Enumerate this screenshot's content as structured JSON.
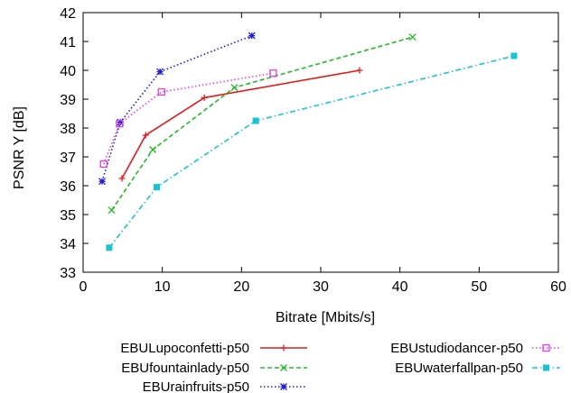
{
  "chart_data": {
    "type": "line",
    "title": "",
    "xlabel": "Bitrate [Mbits/s]",
    "ylabel": "PSNR Y [dB]",
    "xlim": [
      0,
      60
    ],
    "ylim": [
      33,
      42
    ],
    "xticks": [
      0,
      10,
      20,
      30,
      40,
      50,
      60
    ],
    "yticks": [
      33,
      34,
      35,
      36,
      37,
      38,
      39,
      40,
      41,
      42
    ],
    "grid": false,
    "legend_position": "bottom",
    "series": [
      {
        "name": "EBULupoconfetti-p50",
        "color": "#e41a1c",
        "dash": "solid",
        "marker": "plus",
        "x": [
          4.9,
          7.9,
          15.3,
          34.9
        ],
        "y": [
          36.25,
          37.75,
          39.05,
          40.0
        ]
      },
      {
        "name": "EBUfountainlady-p50",
        "color": "#22bb22",
        "dash": "dashed",
        "marker": "x",
        "x": [
          3.6,
          8.8,
          19.1,
          41.6
        ],
        "y": [
          35.15,
          37.25,
          39.4,
          41.15
        ]
      },
      {
        "name": "EBUrainfruits-p50",
        "color": "#1a1ad4",
        "dash": "dotted",
        "marker": "star",
        "x": [
          2.4,
          4.7,
          9.7,
          21.3
        ],
        "y": [
          36.15,
          38.2,
          39.95,
          41.2
        ]
      },
      {
        "name": "EBUstudiodancer-p50",
        "color": "#e040e0",
        "dash": "dotted",
        "marker": "square",
        "x": [
          2.6,
          4.6,
          9.9,
          24.0
        ],
        "y": [
          36.75,
          38.15,
          39.25,
          39.9
        ]
      },
      {
        "name": "EBUwaterfallpan-p50",
        "color": "#19c3d2",
        "dash": "dashdot",
        "marker": "filled-square",
        "x": [
          3.3,
          9.3,
          21.8,
          54.4
        ],
        "y": [
          33.85,
          35.95,
          38.25,
          40.5
        ]
      }
    ]
  }
}
